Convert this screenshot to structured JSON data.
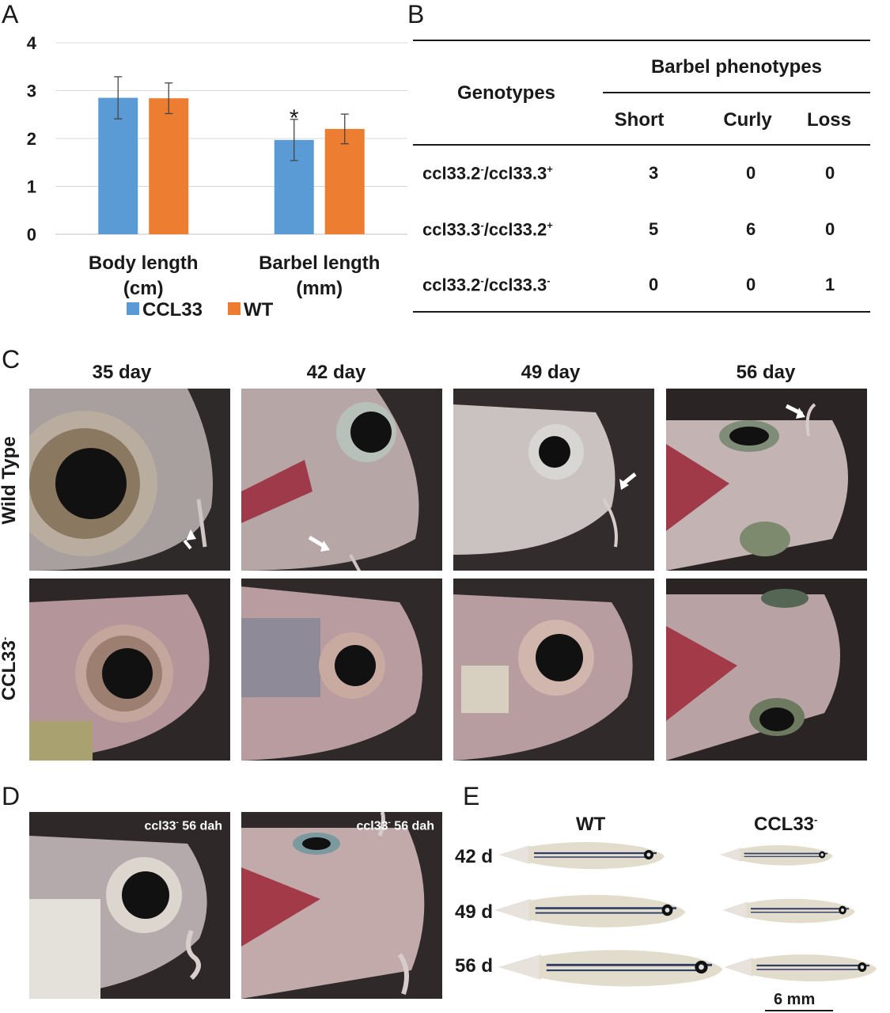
{
  "panels": {
    "a": "A",
    "b": "B",
    "c": "C",
    "d": "D",
    "e": "E"
  },
  "chart_data": {
    "type": "bar",
    "categories": [
      "Body length\n(cm)",
      "Barbel length\n(mm)"
    ],
    "category_lines": [
      [
        "Body length",
        "(cm)"
      ],
      [
        "Barbel length",
        "(mm)"
      ]
    ],
    "series": [
      {
        "name": "CCL33",
        "color": "#5b9bd5",
        "values": [
          2.85,
          1.97
        ],
        "errors": [
          0.44,
          0.43
        ]
      },
      {
        "name": "WT",
        "color": "#ed7d31",
        "values": [
          2.84,
          2.2
        ],
        "errors": [
          0.32,
          0.31
        ]
      }
    ],
    "annotations": [
      {
        "category": 1,
        "series": 0,
        "text": "*"
      }
    ],
    "yticks": [
      0,
      1,
      2,
      3,
      4
    ],
    "ylim": [
      0,
      4
    ],
    "grid": true,
    "legend": "bottom"
  },
  "table": {
    "col_header_genotypes": "Genotypes",
    "col_header_phenotypes": "Barbel phenotypes",
    "subheaders": [
      "Short",
      "Curly",
      "Loss"
    ],
    "rows": [
      {
        "g1": "ccl33.2",
        "s1": "-",
        "g2": "/ccl33.3",
        "s2": "+",
        "values": [
          "3",
          "0",
          "0"
        ]
      },
      {
        "g1": "ccl33.3",
        "s1": "-",
        "g2": "/ccl33.2",
        "s2": "+",
        "values": [
          "5",
          "6",
          "0"
        ]
      },
      {
        "g1": "ccl33.2",
        "s1": "-",
        "g2": "/ccl33.3",
        "s2": "-",
        "values": [
          "0",
          "0",
          "1"
        ]
      }
    ]
  },
  "grid": {
    "columns": [
      "35 day",
      "42 day",
      "49 day",
      "56 day"
    ],
    "row_wt": "Wild Type",
    "row_ccl": "CCL33",
    "row_ccl_sup": "-"
  },
  "panel_d": {
    "label_main": "ccl33",
    "label_sup": "-",
    "label_tail": " 56 dah"
  },
  "panel_e": {
    "col_wt": "WT",
    "col_ccl": "CCL33",
    "col_ccl_sup": "-",
    "rows": [
      "42 d",
      "49 d",
      "56 d"
    ],
    "scale_bar": "6 mm"
  },
  "colors": {
    "ccl33": "#5b9bd5",
    "wt": "#ed7d31",
    "photo_bg": "#2b2626",
    "fish_tissue": "#c9a9a6"
  }
}
